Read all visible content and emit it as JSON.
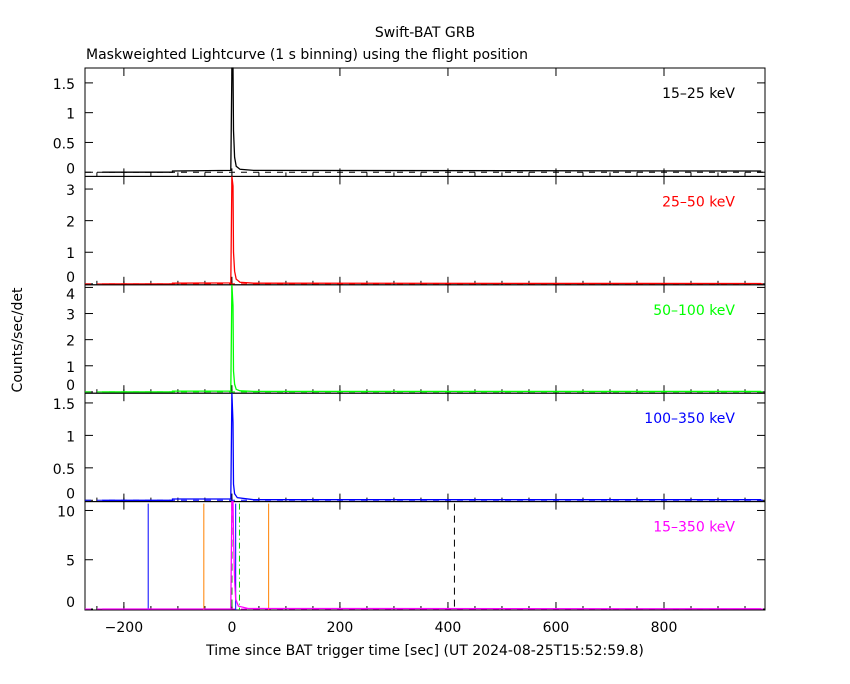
{
  "chart_data": {
    "type": "line",
    "title": "Swift-BAT GRB",
    "subtitle": "Maskweighted Lightcurve (1 s binning) using the flight position",
    "xlabel": "Time since BAT trigger time [sec] (UT 2024-08-25T15:52:59.8)",
    "ylabel": "Counts/sec/det",
    "xlim": [
      -272,
      987
    ],
    "xticks": [
      -200,
      0,
      200,
      400,
      600,
      800
    ],
    "xtick_labels": [
      "−200",
      "0",
      "200",
      "400",
      "600",
      "800"
    ],
    "panels": [
      {
        "label": "15–25 keV",
        "color": "#000000",
        "ylim": [
          -0.07,
          1.75
        ],
        "yticks": [
          0,
          0.5,
          1,
          1.5
        ],
        "ytick_labels": [
          "0",
          "0.5",
          "1",
          "1.5"
        ],
        "points": [
          [
            -240,
            0
          ],
          [
            -110,
            0
          ],
          [
            -110,
            0.02
          ],
          [
            -2,
            0.03
          ],
          [
            0,
            1.75
          ],
          [
            2,
            1.75
          ],
          [
            3,
            0.7
          ],
          [
            5,
            0.25
          ],
          [
            8,
            0.1
          ],
          [
            15,
            0.05
          ],
          [
            40,
            0.03
          ],
          [
            980,
            0.02
          ]
        ]
      },
      {
        "label": "25–50 keV",
        "color": "#ff0000",
        "ylim": [
          -0.03,
          3.4
        ],
        "yticks": [
          0,
          1,
          2,
          3
        ],
        "ytick_labels": [
          "0",
          "1",
          "2",
          "3"
        ],
        "points": [
          [
            -240,
            0
          ],
          [
            -110,
            0
          ],
          [
            -110,
            0.02
          ],
          [
            -2,
            0.03
          ],
          [
            0,
            3.4
          ],
          [
            2,
            3.1
          ],
          [
            3,
            1.0
          ],
          [
            5,
            0.4
          ],
          [
            8,
            0.15
          ],
          [
            15,
            0.05
          ],
          [
            40,
            0.02
          ],
          [
            980,
            0.01
          ]
        ]
      },
      {
        "label": "50–100 keV",
        "color": "#00ff00",
        "ylim": [
          -0.05,
          4.1
        ],
        "yticks": [
          0,
          1,
          2,
          3,
          4
        ],
        "ytick_labels": [
          "0",
          "1",
          "2",
          "3",
          "4"
        ],
        "points": [
          [
            -240,
            0
          ],
          [
            -110,
            0
          ],
          [
            -110,
            0.03
          ],
          [
            -2,
            0.03
          ],
          [
            0,
            4.1
          ],
          [
            2,
            3.3
          ],
          [
            3,
            0.8
          ],
          [
            5,
            0.3
          ],
          [
            8,
            0.1
          ],
          [
            15,
            0.04
          ],
          [
            40,
            0.02
          ],
          [
            980,
            0.02
          ]
        ]
      },
      {
        "label": "100–350 keV",
        "color": "#0000ff",
        "ylim": [
          -0.02,
          1.65
        ],
        "yticks": [
          0,
          0.5,
          1,
          1.5
        ],
        "ytick_labels": [
          "0",
          "0.5",
          "1",
          "1.5"
        ],
        "points": [
          [
            -240,
            0
          ],
          [
            -110,
            0
          ],
          [
            -110,
            0.02
          ],
          [
            -2,
            0.02
          ],
          [
            0,
            1.65
          ],
          [
            2,
            1.2
          ],
          [
            3,
            0.25
          ],
          [
            5,
            0.1
          ],
          [
            10,
            0.04
          ],
          [
            40,
            0.01
          ],
          [
            980,
            0.01
          ]
        ]
      },
      {
        "label": "15–350 keV",
        "color": "#ff00ff",
        "ylim": [
          -0.1,
          10.9
        ],
        "yticks": [
          0,
          5,
          10
        ],
        "ytick_labels": [
          "0",
          "5",
          "10"
        ],
        "points": [
          [
            -240,
            0
          ],
          [
            -2,
            0
          ],
          [
            0,
            10.9
          ],
          [
            2,
            10.9
          ],
          [
            3,
            7.5
          ],
          [
            5,
            3
          ],
          [
            7,
            1
          ],
          [
            12,
            0.3
          ],
          [
            30,
            0.05
          ],
          [
            980,
            0.02
          ]
        ],
        "vlines": [
          {
            "x": -155,
            "color": "#0000ff",
            "style": "solid"
          },
          {
            "x": 7,
            "color": "#0000ff",
            "style": "solid"
          },
          {
            "x": -52,
            "color": "#ff8000",
            "style": "solid"
          },
          {
            "x": 68,
            "color": "#ff8000",
            "style": "solid"
          },
          {
            "x": 0,
            "color": "#000000",
            "style": "dash"
          },
          {
            "x": 412,
            "color": "#000000",
            "style": "dash"
          },
          {
            "x": 0,
            "color": "#00cc00",
            "style": "dash"
          },
          {
            "x": 14,
            "color": "#00cc00",
            "style": "dashdot"
          }
        ]
      }
    ]
  }
}
